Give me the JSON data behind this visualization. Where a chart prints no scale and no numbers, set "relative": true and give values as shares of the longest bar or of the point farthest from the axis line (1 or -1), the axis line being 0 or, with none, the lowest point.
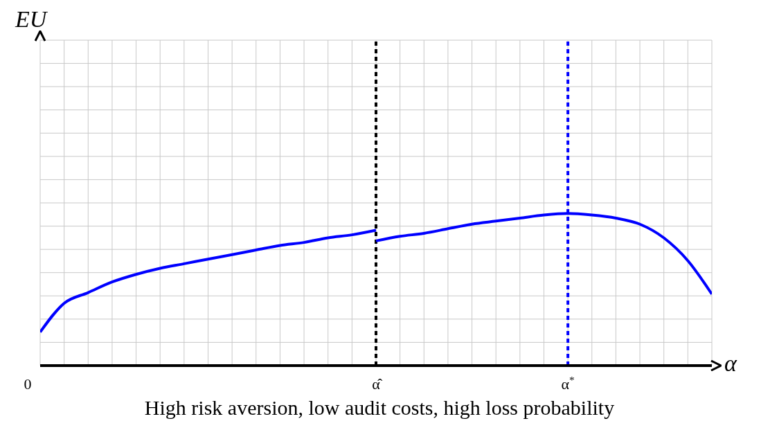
{
  "chart_data": {
    "type": "line",
    "relative": true,
    "xlabel": "α",
    "annotations": [
      "EU",
      "High risk aversion, low audit costs, high loss probability"
    ],
    "categories": [
      "0",
      null,
      null,
      null,
      null,
      null,
      null,
      null,
      null,
      null,
      null,
      null,
      null,
      null,
      "α̂",
      null,
      null,
      null,
      null,
      null,
      null,
      null,
      "α$^{*}$",
      null,
      null,
      null,
      null,
      null,
      null
    ],
    "grid": true,
    "marker": "none",
    "line_style": "solid",
    "ref_lines": [
      {
        "axis": "x",
        "value": "α̂",
        "color": "#000000",
        "line_style": "dashed"
      },
      {
        "axis": "x",
        "value": "α$^{*}$",
        "color": "#0000ff",
        "line_style": "dashed"
      }
    ],
    "series": [
      {
        "color": "#0000ff",
        "values": [
          0.22,
          0.41,
          0.48,
          0.55,
          0.6,
          0.64,
          0.67,
          0.7,
          0.73,
          0.76,
          0.79,
          0.81,
          0.84,
          0.86,
          0.89,
          null,
          null,
          null,
          null,
          null,
          null,
          null,
          null,
          null,
          null,
          null,
          null,
          null,
          null
        ]
      },
      {
        "color": "#0000ff",
        "values": [
          null,
          null,
          null,
          null,
          null,
          null,
          null,
          null,
          null,
          null,
          null,
          null,
          null,
          null,
          0.82,
          0.85,
          0.87,
          0.9,
          0.93,
          0.95,
          0.97,
          0.99,
          1,
          0.99,
          0.97,
          0.93,
          0.84,
          0.69,
          0.47
        ]
      }
    ]
  }
}
